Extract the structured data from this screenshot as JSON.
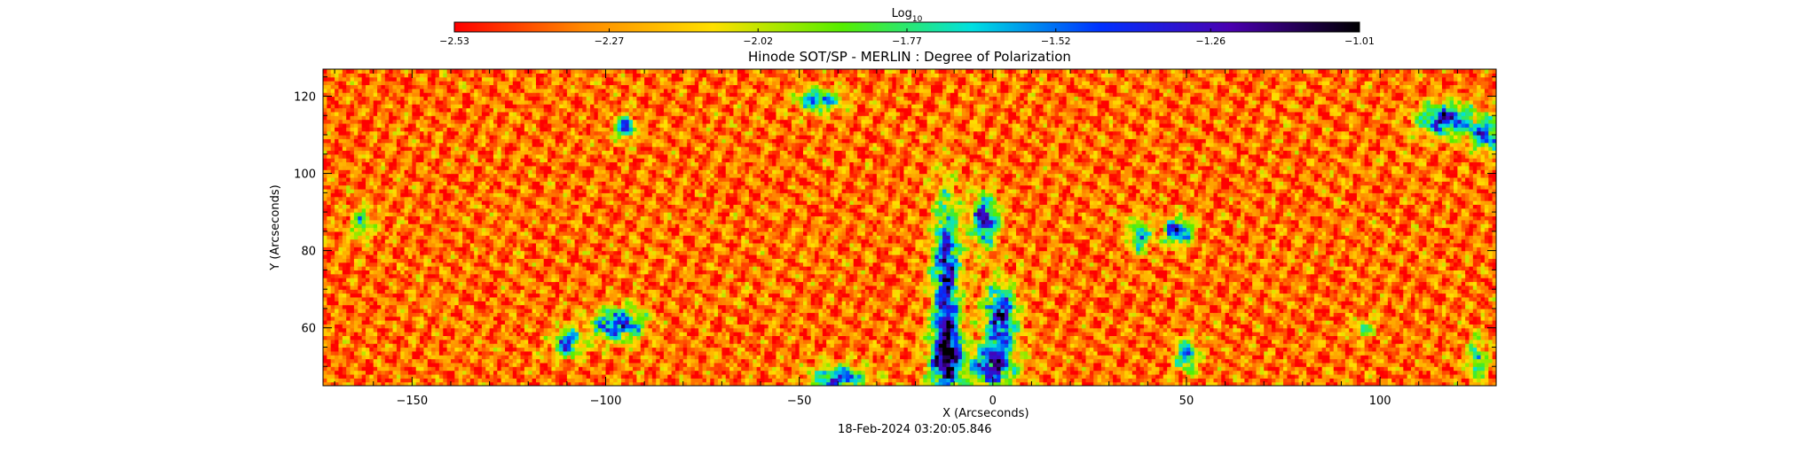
{
  "chart_data": {
    "type": "heatmap",
    "title": "Hinode SOT/SP - MERLIN : Degree of Polarization",
    "xlabel": "X (Arcseconds)",
    "ylabel": "Y (Arcseconds)",
    "xlim": [
      -173,
      130
    ],
    "ylim": [
      45,
      127
    ],
    "x_ticks": [
      -150,
      -100,
      -50,
      0,
      50,
      100
    ],
    "x_tick_labels": [
      "−150",
      "−100",
      "−50",
      "0",
      "50",
      "100"
    ],
    "y_ticks": [
      60,
      80,
      100,
      120
    ],
    "y_tick_labels": [
      "60",
      "80",
      "100",
      "120"
    ],
    "timestamp": "18-Feb-2024 03:20:05.846",
    "colorbar": {
      "label_base": "Log",
      "label_sub": "10",
      "range": [
        -2.53,
        -1.01
      ],
      "ticks": [
        -2.53,
        -2.27,
        -2.02,
        -1.77,
        -1.52,
        -1.26,
        -1.01
      ],
      "tick_labels": [
        "−2.53",
        "−2.27",
        "−2.02",
        "−1.77",
        "−1.52",
        "−1.26",
        "−1.01"
      ],
      "colors": [
        "#ff0000",
        "#ff8a00",
        "#ffe000",
        "#55ee00",
        "#00e0e0",
        "#0030ff",
        "#4a00b0",
        "#000000"
      ]
    },
    "background_level": -2.35,
    "features": [
      {
        "x": -12,
        "y": 75,
        "sx": 2.5,
        "sy": 14,
        "level": -1.3
      },
      {
        "x": -12,
        "y": 52,
        "sx": 3,
        "sy": 7,
        "level": -1.28
      },
      {
        "x": -2,
        "y": 88,
        "sx": 2.5,
        "sy": 5,
        "level": -1.35
      },
      {
        "x": 2,
        "y": 63,
        "sx": 3,
        "sy": 6,
        "level": -1.28
      },
      {
        "x": 0,
        "y": 50,
        "sx": 4,
        "sy": 4,
        "level": -1.3
      },
      {
        "x": -97,
        "y": 61,
        "sx": 5,
        "sy": 3,
        "level": -1.38
      },
      {
        "x": -110,
        "y": 56,
        "sx": 2.5,
        "sy": 2.5,
        "level": -1.4
      },
      {
        "x": -95,
        "y": 112,
        "sx": 2,
        "sy": 2,
        "level": -1.38
      },
      {
        "x": -40,
        "y": 47,
        "sx": 5,
        "sy": 2.5,
        "level": -1.42
      },
      {
        "x": -45,
        "y": 119,
        "sx": 4,
        "sy": 2,
        "level": -1.5
      },
      {
        "x": 48,
        "y": 85,
        "sx": 2.5,
        "sy": 2.5,
        "level": -1.35
      },
      {
        "x": 38,
        "y": 84,
        "sx": 2,
        "sy": 3,
        "level": -1.55
      },
      {
        "x": 117,
        "y": 114,
        "sx": 5,
        "sy": 3,
        "level": -1.35
      },
      {
        "x": 128,
        "y": 110,
        "sx": 3,
        "sy": 3,
        "level": -1.45
      },
      {
        "x": 50,
        "y": 53,
        "sx": 2,
        "sy": 3,
        "level": -1.55
      },
      {
        "x": 125,
        "y": 52,
        "sx": 2,
        "sy": 4,
        "level": -1.7
      },
      {
        "x": -163,
        "y": 87,
        "sx": 2,
        "sy": 3,
        "level": -1.8
      },
      {
        "x": 96,
        "y": 60,
        "sx": 2,
        "sy": 2,
        "level": -1.9
      }
    ]
  }
}
